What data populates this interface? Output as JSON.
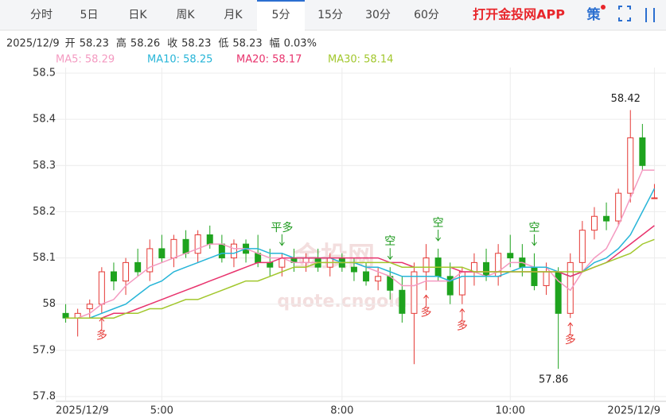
{
  "header": {
    "tabs": [
      "分时",
      "5日",
      "日K",
      "周K",
      "月K",
      "5分",
      "15分",
      "30分",
      "60分"
    ],
    "active_tab": 5,
    "app_link": "打开金投网APP",
    "icon_text": "策"
  },
  "info": {
    "date": "2025/12/9",
    "items": [
      {
        "label": "开",
        "value": "58.23"
      },
      {
        "label": "高",
        "value": "58.26"
      },
      {
        "label": "收",
        "value": "58.23"
      },
      {
        "label": "低",
        "value": "58.23"
      },
      {
        "label": "幅",
        "value": "0.03%"
      }
    ]
  },
  "chart_data": {
    "type": "candlestick",
    "candles": [
      [
        57.98,
        58.0,
        57.96,
        57.97
      ],
      [
        57.97,
        57.99,
        57.93,
        57.98
      ],
      [
        57.99,
        58.01,
        57.97,
        58.0
      ],
      [
        58.0,
        58.08,
        57.98,
        58.07
      ],
      [
        58.07,
        58.09,
        58.03,
        58.05
      ],
      [
        58.05,
        58.1,
        58.02,
        58.09
      ],
      [
        58.09,
        58.12,
        58.06,
        58.07
      ],
      [
        58.07,
        58.14,
        58.05,
        58.12
      ],
      [
        58.12,
        58.15,
        58.09,
        58.1
      ],
      [
        58.1,
        58.15,
        58.08,
        58.14
      ],
      [
        58.14,
        58.16,
        58.1,
        58.11
      ],
      [
        58.11,
        58.16,
        58.09,
        58.15
      ],
      [
        58.15,
        58.17,
        58.12,
        58.13
      ],
      [
        58.13,
        58.15,
        58.09,
        58.1
      ],
      [
        58.1,
        58.14,
        58.08,
        58.13
      ],
      [
        58.13,
        58.14,
        58.09,
        58.11
      ],
      [
        58.11,
        58.15,
        58.08,
        58.09
      ],
      [
        58.09,
        58.12,
        58.06,
        58.08
      ],
      [
        58.08,
        58.11,
        58.06,
        58.1
      ],
      [
        58.1,
        58.12,
        58.07,
        58.09
      ],
      [
        58.09,
        58.11,
        58.07,
        58.1
      ],
      [
        58.1,
        58.12,
        58.07,
        58.08
      ],
      [
        58.08,
        58.11,
        58.06,
        58.1
      ],
      [
        58.1,
        58.11,
        58.07,
        58.08
      ],
      [
        58.08,
        58.1,
        58.05,
        58.07
      ],
      [
        58.07,
        58.09,
        58.04,
        58.05
      ],
      [
        58.05,
        58.08,
        58.03,
        58.06
      ],
      [
        58.06,
        58.08,
        58.01,
        58.03
      ],
      [
        58.03,
        58.06,
        57.96,
        57.98
      ],
      [
        57.98,
        58.09,
        57.87,
        58.07
      ],
      [
        58.07,
        58.13,
        58.03,
        58.1
      ],
      [
        58.1,
        58.12,
        58.05,
        58.06
      ],
      [
        58.06,
        58.09,
        58.0,
        58.02
      ],
      [
        58.02,
        58.08,
        58.0,
        58.07
      ],
      [
        58.07,
        58.11,
        58.04,
        58.09
      ],
      [
        58.09,
        58.12,
        58.05,
        58.06
      ],
      [
        58.06,
        58.13,
        58.04,
        58.11
      ],
      [
        58.11,
        58.15,
        58.08,
        58.1
      ],
      [
        58.1,
        58.13,
        58.06,
        58.08
      ],
      [
        58.08,
        58.11,
        58.03,
        58.04
      ],
      [
        58.04,
        58.09,
        58.02,
        58.07
      ],
      [
        58.07,
        58.08,
        57.86,
        57.98
      ],
      [
        57.98,
        58.11,
        57.97,
        58.09
      ],
      [
        58.09,
        58.18,
        58.07,
        58.16
      ],
      [
        58.16,
        58.21,
        58.14,
        58.19
      ],
      [
        58.19,
        58.22,
        58.16,
        58.18
      ],
      [
        58.18,
        58.25,
        58.17,
        58.24
      ],
      [
        58.24,
        58.42,
        58.22,
        58.36
      ],
      [
        58.36,
        58.39,
        58.29,
        58.3
      ],
      [
        58.23,
        58.26,
        58.23,
        58.23
      ]
    ],
    "up_color": "#e53935",
    "down_color": "#1ea31e",
    "series": [
      {
        "name": "MA5: 58.29",
        "color": "#f49ac1",
        "values": [
          57.97,
          57.97,
          57.98,
          58.0,
          58.01,
          58.04,
          58.06,
          58.08,
          58.09,
          58.1,
          58.11,
          58.12,
          58.13,
          58.13,
          58.12,
          58.12,
          58.11,
          58.1,
          58.1,
          58.09,
          58.09,
          58.09,
          58.09,
          58.09,
          58.09,
          58.08,
          58.07,
          58.06,
          58.04,
          58.04,
          58.05,
          58.05,
          58.05,
          58.07,
          58.07,
          58.06,
          58.07,
          58.09,
          58.09,
          58.08,
          58.08,
          58.05,
          58.03,
          58.07,
          58.1,
          58.12,
          58.17,
          58.23,
          58.29,
          58.29
        ]
      },
      {
        "name": "MA10: 58.25",
        "color": "#27b5d8",
        "values": [
          57.97,
          57.97,
          57.97,
          57.98,
          57.99,
          58.0,
          58.02,
          58.04,
          58.05,
          58.07,
          58.08,
          58.09,
          58.1,
          58.11,
          58.11,
          58.12,
          58.12,
          58.11,
          58.11,
          58.1,
          58.1,
          58.1,
          58.1,
          58.09,
          58.09,
          58.08,
          58.08,
          58.07,
          58.06,
          58.06,
          58.06,
          58.06,
          58.05,
          58.06,
          58.06,
          58.06,
          58.06,
          58.07,
          58.08,
          58.08,
          58.08,
          58.07,
          58.06,
          58.07,
          58.09,
          58.1,
          58.12,
          58.15,
          58.2,
          58.25
        ]
      },
      {
        "name": "MA20: 58.17",
        "color": "#e8336d",
        "values": [
          57.97,
          57.97,
          57.97,
          57.97,
          57.98,
          57.98,
          57.99,
          58.0,
          58.01,
          58.02,
          58.03,
          58.04,
          58.05,
          58.06,
          58.07,
          58.08,
          58.09,
          58.09,
          58.1,
          58.1,
          58.1,
          58.1,
          58.1,
          58.1,
          58.1,
          58.1,
          58.1,
          58.09,
          58.09,
          58.08,
          58.08,
          58.08,
          58.08,
          58.07,
          58.07,
          58.07,
          58.07,
          58.07,
          58.07,
          58.07,
          58.07,
          58.07,
          58.06,
          58.07,
          58.08,
          58.09,
          58.11,
          58.13,
          58.15,
          58.17
        ]
      },
      {
        "name": "MA30: 58.14",
        "color": "#a2c72d",
        "values": [
          57.97,
          57.97,
          57.97,
          57.97,
          57.97,
          57.98,
          57.98,
          57.99,
          57.99,
          58.0,
          58.01,
          58.01,
          58.02,
          58.03,
          58.04,
          58.05,
          58.05,
          58.06,
          58.07,
          58.08,
          58.08,
          58.09,
          58.09,
          58.09,
          58.09,
          58.09,
          58.09,
          58.09,
          58.08,
          58.08,
          58.08,
          58.08,
          58.08,
          58.08,
          58.07,
          58.07,
          58.07,
          58.07,
          58.07,
          58.07,
          58.07,
          58.07,
          58.07,
          58.07,
          58.08,
          58.09,
          58.1,
          58.11,
          58.13,
          58.14
        ]
      }
    ],
    "ylim": [
      57.8,
      58.5
    ],
    "yticks": [
      57.8,
      57.9,
      58,
      58.1,
      58.2,
      58.3,
      58.4,
      58.5
    ],
    "grid": true,
    "xticks": [
      {
        "value": 0,
        "label": "2025/12/9"
      },
      {
        "value": 8,
        "label": "5:00"
      },
      {
        "value": 23,
        "label": "8:00"
      },
      {
        "value": 37,
        "label": "10:00"
      },
      {
        "value": 49,
        "label": "2025/12/9"
      }
    ],
    "extremes": [
      {
        "index": 47,
        "label": "58.42",
        "side": "above"
      },
      {
        "index": 41,
        "label": "57.86",
        "side": "below"
      }
    ],
    "signals": [
      {
        "index": 3,
        "text": "多",
        "side": "below"
      },
      {
        "index": 18,
        "text": "平多",
        "side": "above"
      },
      {
        "index": 27,
        "text": "空",
        "side": "above"
      },
      {
        "index": 30,
        "text": "多",
        "side": "below"
      },
      {
        "index": 31,
        "text": "空",
        "side": "above"
      },
      {
        "index": 33,
        "text": "多",
        "side": "below"
      },
      {
        "index": 39,
        "text": "空",
        "side": "above"
      },
      {
        "index": 42,
        "text": "多",
        "side": "below"
      }
    ],
    "watermark": [
      "金投网",
      "quote.cngold"
    ]
  }
}
